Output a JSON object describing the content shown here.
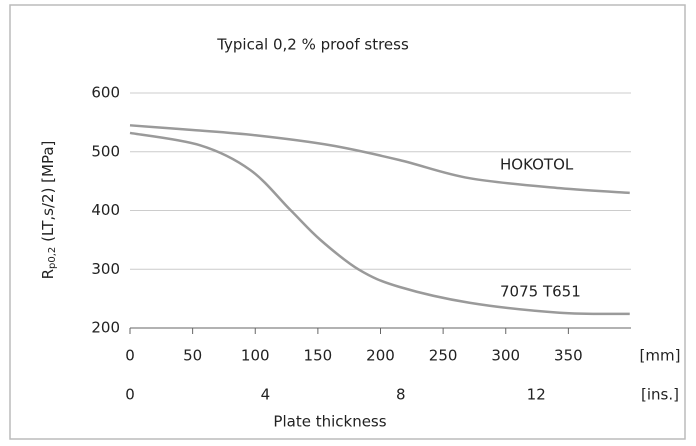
{
  "chart_data": {
    "type": "line",
    "title": "Typical 0,2 % proof stress",
    "x_label": "Plate thickness",
    "y_label": "R",
    "y_label_sub": "p0,2",
    "y_label_rest": " (LT,s/2) [MPa]",
    "x_unit": "[mm]",
    "x2_unit": "[ins.]",
    "xlim": [
      0,
      400
    ],
    "xticks": [
      0,
      50,
      100,
      150,
      200,
      250,
      300,
      350
    ],
    "x2lim": [
      0,
      14.8
    ],
    "x2ticks": [
      0,
      4,
      8,
      12
    ],
    "ylim": [
      200,
      600
    ],
    "yticks": [
      200,
      300,
      400,
      500,
      600
    ],
    "grid": true,
    "series": [
      {
        "name": "HOKOTOL",
        "color": "#9a9a9a",
        "x": [
          0,
          50,
          100,
          160,
          215,
          271,
          343,
          399
        ],
        "values": [
          545,
          537,
          528,
          511,
          486,
          455,
          438,
          430
        ]
      },
      {
        "name": "7075 T651",
        "color": "#9a9a9a",
        "x": [
          0,
          56,
          96,
          128,
          152,
          183,
          215,
          271,
          343,
          399
        ],
        "values": [
          532,
          511,
          469,
          401,
          350,
          299,
          270,
          243,
          226,
          224
        ]
      }
    ]
  }
}
